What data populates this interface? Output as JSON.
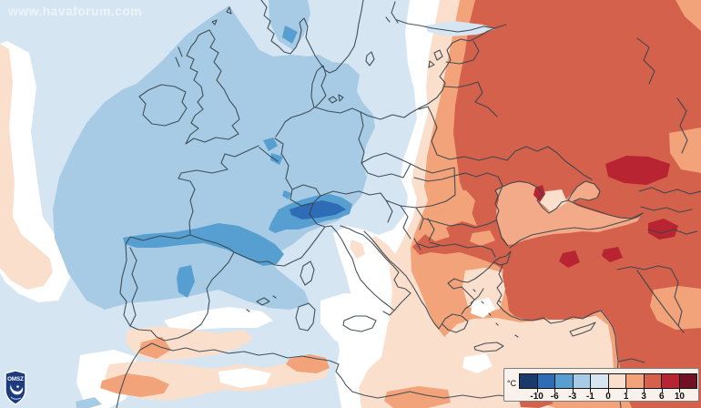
{
  "watermark": {
    "text": "www.havaforum.com"
  },
  "logo": {
    "org": "OMSZ"
  },
  "legend": {
    "unit": "°C",
    "ticks": [
      "-10",
      "-6",
      "-3",
      "-1",
      "0",
      "1",
      "3",
      "6",
      "10"
    ],
    "colors": [
      "#1a3a6c",
      "#2e6cb5",
      "#579fd0",
      "#a7cbe4",
      "#d6e5f2",
      "#fbdfcd",
      "#f2a379",
      "#d3614c",
      "#b92432",
      "#731124"
    ]
  },
  "map": {
    "description": "Temperature anomaly map of Europe",
    "palette": {
      "s1": "#1a3a6c",
      "s2": "#2e6cb5",
      "s3": "#579fd0",
      "s4": "#a7cbe4",
      "s5": "#d6e5f2",
      "s6": "#fbdfcd",
      "s7": "#f2a379",
      "s8": "#d3614c",
      "s9": "#b92432",
      "s10": "#731124",
      "zero": "#ffffff",
      "sea_warm": "#f3aa88",
      "line": "#36454f",
      "logo_navy": "#1e3c7d",
      "logo_white": "#ffffff"
    }
  }
}
